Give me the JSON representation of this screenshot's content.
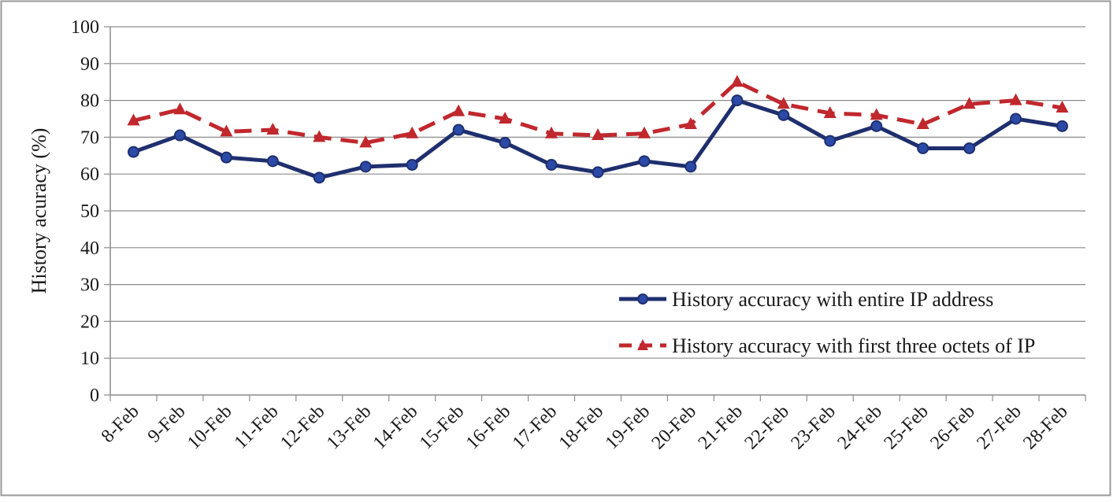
{
  "chart_data": {
    "type": "line",
    "ylabel": "History acuracy (%)",
    "xlabel": "",
    "title": "",
    "ylim": [
      0,
      100
    ],
    "y_ticks": [
      0,
      10,
      20,
      30,
      40,
      50,
      60,
      70,
      80,
      90,
      100
    ],
    "grid": "horizontal",
    "legend_position": "bottom-right",
    "categories": [
      "8-Feb",
      "9-Feb",
      "10-Feb",
      "11-Feb",
      "12-Feb",
      "13-Feb",
      "14-Feb",
      "15-Feb",
      "16-Feb",
      "17-Feb",
      "18-Feb",
      "19-Feb",
      "20-Feb",
      "21-Feb",
      "22-Feb",
      "23-Feb",
      "24-Feb",
      "25-Feb",
      "26-Feb",
      "27-Feb",
      "28-Feb"
    ],
    "series": [
      {
        "name": "History accuracy with entire IP address",
        "color": "#1f2f6e",
        "line_style": "solid",
        "marker": "circle",
        "values": [
          66,
          70.5,
          64.5,
          63.5,
          59,
          62,
          62.5,
          72,
          68.5,
          62.5,
          60.5,
          63.5,
          62,
          80,
          76,
          69,
          73,
          67,
          67,
          75,
          73
        ]
      },
      {
        "name": "History accuracy with first three octets of IP",
        "color": "#c0282d",
        "line_style": "dashed",
        "marker": "triangle",
        "values": [
          74.5,
          77.5,
          71.5,
          72,
          70,
          68.5,
          71,
          77,
          75,
          71,
          70.5,
          71,
          73.5,
          85,
          79,
          76.5,
          76,
          73.5,
          79,
          80,
          78
        ]
      }
    ]
  }
}
